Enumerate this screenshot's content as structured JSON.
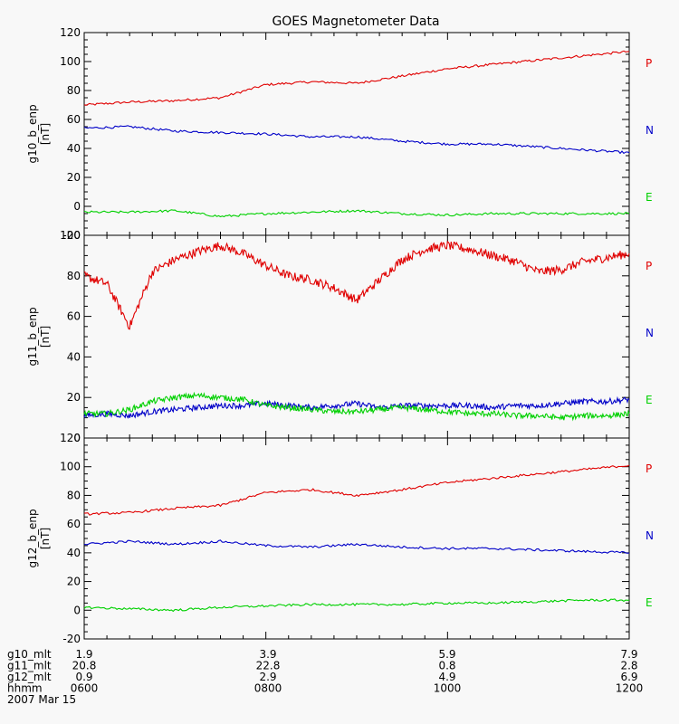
{
  "title": "GOES Magnetometer Data",
  "colors": {
    "P": "#e00000",
    "N": "#0000c8",
    "E": "#00d000",
    "axis": "#000000",
    "bg": "#f8f8f8"
  },
  "chart_data": [
    {
      "type": "line",
      "ylabel": "g10_b_enp",
      "yunit": "[nT]",
      "ylim": [
        -20,
        120
      ],
      "yticks": [
        -20,
        0,
        20,
        40,
        60,
        80,
        100,
        120
      ],
      "x_hours": [
        6.0,
        6.5,
        7.0,
        7.5,
        8.0,
        8.5,
        9.0,
        9.5,
        10.0,
        10.5,
        11.0,
        11.5,
        12.0
      ],
      "series": [
        {
          "name": "P",
          "values": [
            70,
            72,
            73,
            75,
            84,
            86,
            85,
            90,
            95,
            98,
            101,
            104,
            107
          ]
        },
        {
          "name": "N",
          "values": [
            54,
            55,
            52,
            51,
            50,
            48,
            48,
            45,
            43,
            43,
            41,
            39,
            37
          ]
        },
        {
          "name": "E",
          "values": [
            -4,
            -4,
            -3,
            -7,
            -5,
            -4,
            -3,
            -5,
            -6,
            -5,
            -5,
            -5,
            -5
          ]
        }
      ]
    },
    {
      "type": "line",
      "ylabel": "g11_b_enp",
      "yunit": "[nT]",
      "ylim": [
        0,
        100
      ],
      "yticks": [
        0,
        20,
        40,
        60,
        80,
        100
      ],
      "x_hours": [
        6.0,
        6.25,
        6.5,
        6.75,
        7.0,
        7.25,
        7.5,
        7.75,
        8.0,
        8.25,
        8.5,
        8.75,
        9.0,
        9.25,
        9.5,
        9.75,
        10.0,
        10.25,
        10.5,
        10.75,
        11.0,
        11.25,
        11.5,
        11.75,
        12.0
      ],
      "series": [
        {
          "name": "P",
          "values": [
            80,
            76,
            55,
            82,
            88,
            92,
            95,
            91,
            85,
            80,
            78,
            74,
            68,
            78,
            88,
            93,
            95,
            93,
            90,
            87,
            82,
            83,
            87,
            89,
            91
          ]
        },
        {
          "name": "N",
          "values": [
            11,
            12,
            11,
            13,
            14,
            15,
            16,
            16,
            17,
            16,
            15,
            16,
            17,
            15,
            16,
            16,
            16,
            16,
            15,
            16,
            16,
            17,
            18,
            18,
            19
          ]
        },
        {
          "name": "E",
          "values": [
            12,
            12,
            14,
            18,
            20,
            21,
            20,
            19,
            16,
            15,
            14,
            13,
            13,
            14,
            15,
            14,
            13,
            12,
            12,
            11,
            11,
            10,
            11,
            11,
            12
          ]
        }
      ]
    },
    {
      "type": "line",
      "ylabel": "g12_b_enp",
      "yunit": "[nT]",
      "ylim": [
        -20,
        120
      ],
      "yticks": [
        -20,
        0,
        20,
        40,
        60,
        80,
        100,
        120
      ],
      "x_hours": [
        6.0,
        6.5,
        7.0,
        7.5,
        8.0,
        8.5,
        9.0,
        9.5,
        10.0,
        10.5,
        11.0,
        11.5,
        12.0
      ],
      "series": [
        {
          "name": "P",
          "values": [
            67,
            68,
            71,
            73,
            82,
            84,
            80,
            84,
            89,
            92,
            95,
            98,
            101
          ]
        },
        {
          "name": "N",
          "values": [
            46,
            48,
            46,
            48,
            45,
            44,
            46,
            44,
            43,
            43,
            42,
            41,
            40
          ]
        },
        {
          "name": "E",
          "values": [
            2,
            1,
            0,
            2,
            3,
            4,
            4,
            4,
            5,
            5,
            6,
            7,
            7
          ]
        }
      ]
    }
  ],
  "footer": {
    "rows": [
      {
        "label": "g10_mlt",
        "values": [
          "1.9",
          "3.9",
          "5.9",
          "7.9"
        ]
      },
      {
        "label": "g11_mlt",
        "values": [
          "20.8",
          "22.8",
          "0.8",
          "2.8"
        ]
      },
      {
        "label": "g12_mlt",
        "values": [
          "0.9",
          "2.9",
          "4.9",
          "6.9"
        ]
      },
      {
        "label": "hhmm",
        "values": [
          "0600",
          "0800",
          "1000",
          "1200"
        ]
      }
    ],
    "date": "2007 Mar 15"
  }
}
